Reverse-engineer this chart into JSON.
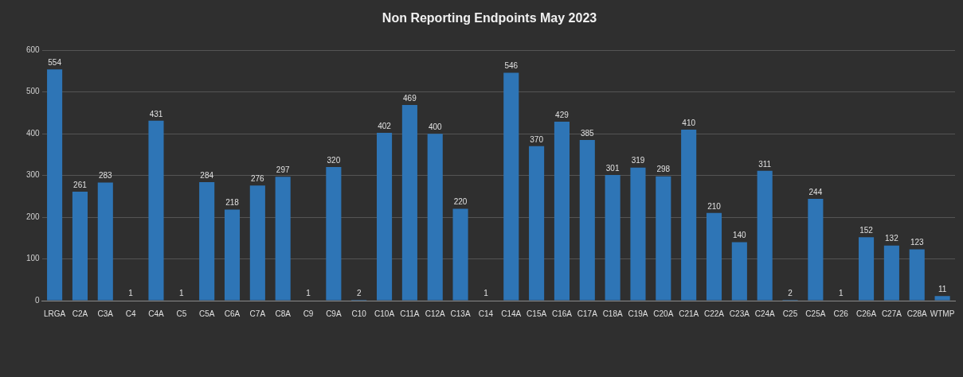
{
  "chart_data": {
    "type": "bar",
    "title": "Non Reporting Endpoints May 2023",
    "categories": [
      "LRGA",
      "C2A",
      "C3A",
      "C4",
      "C4A",
      "C5",
      "C5A",
      "C6A",
      "C7A",
      "C8A",
      "C9",
      "C9A",
      "C10",
      "C10A",
      "C11A",
      "C12A",
      "C13A",
      "C14",
      "C14A",
      "C15A",
      "C16A",
      "C17A",
      "C18A",
      "C19A",
      "C20A",
      "C21A",
      "C22A",
      "C23A",
      "C24A",
      "C25",
      "C25A",
      "C26",
      "C26A",
      "C27A",
      "C28A",
      "WTMP"
    ],
    "values": [
      554,
      261,
      283,
      1,
      431,
      1,
      284,
      218,
      276,
      297,
      1,
      320,
      2,
      402,
      469,
      400,
      220,
      1,
      546,
      370,
      429,
      385,
      301,
      319,
      298,
      410,
      210,
      140,
      311,
      2,
      244,
      1,
      152,
      132,
      123,
      11
    ],
    "color": "#2e75b6",
    "ylim": [
      0,
      600
    ],
    "yticks": [
      0,
      100,
      200,
      300,
      400,
      500,
      600
    ],
    "grid": "y",
    "data_labels": true
  }
}
